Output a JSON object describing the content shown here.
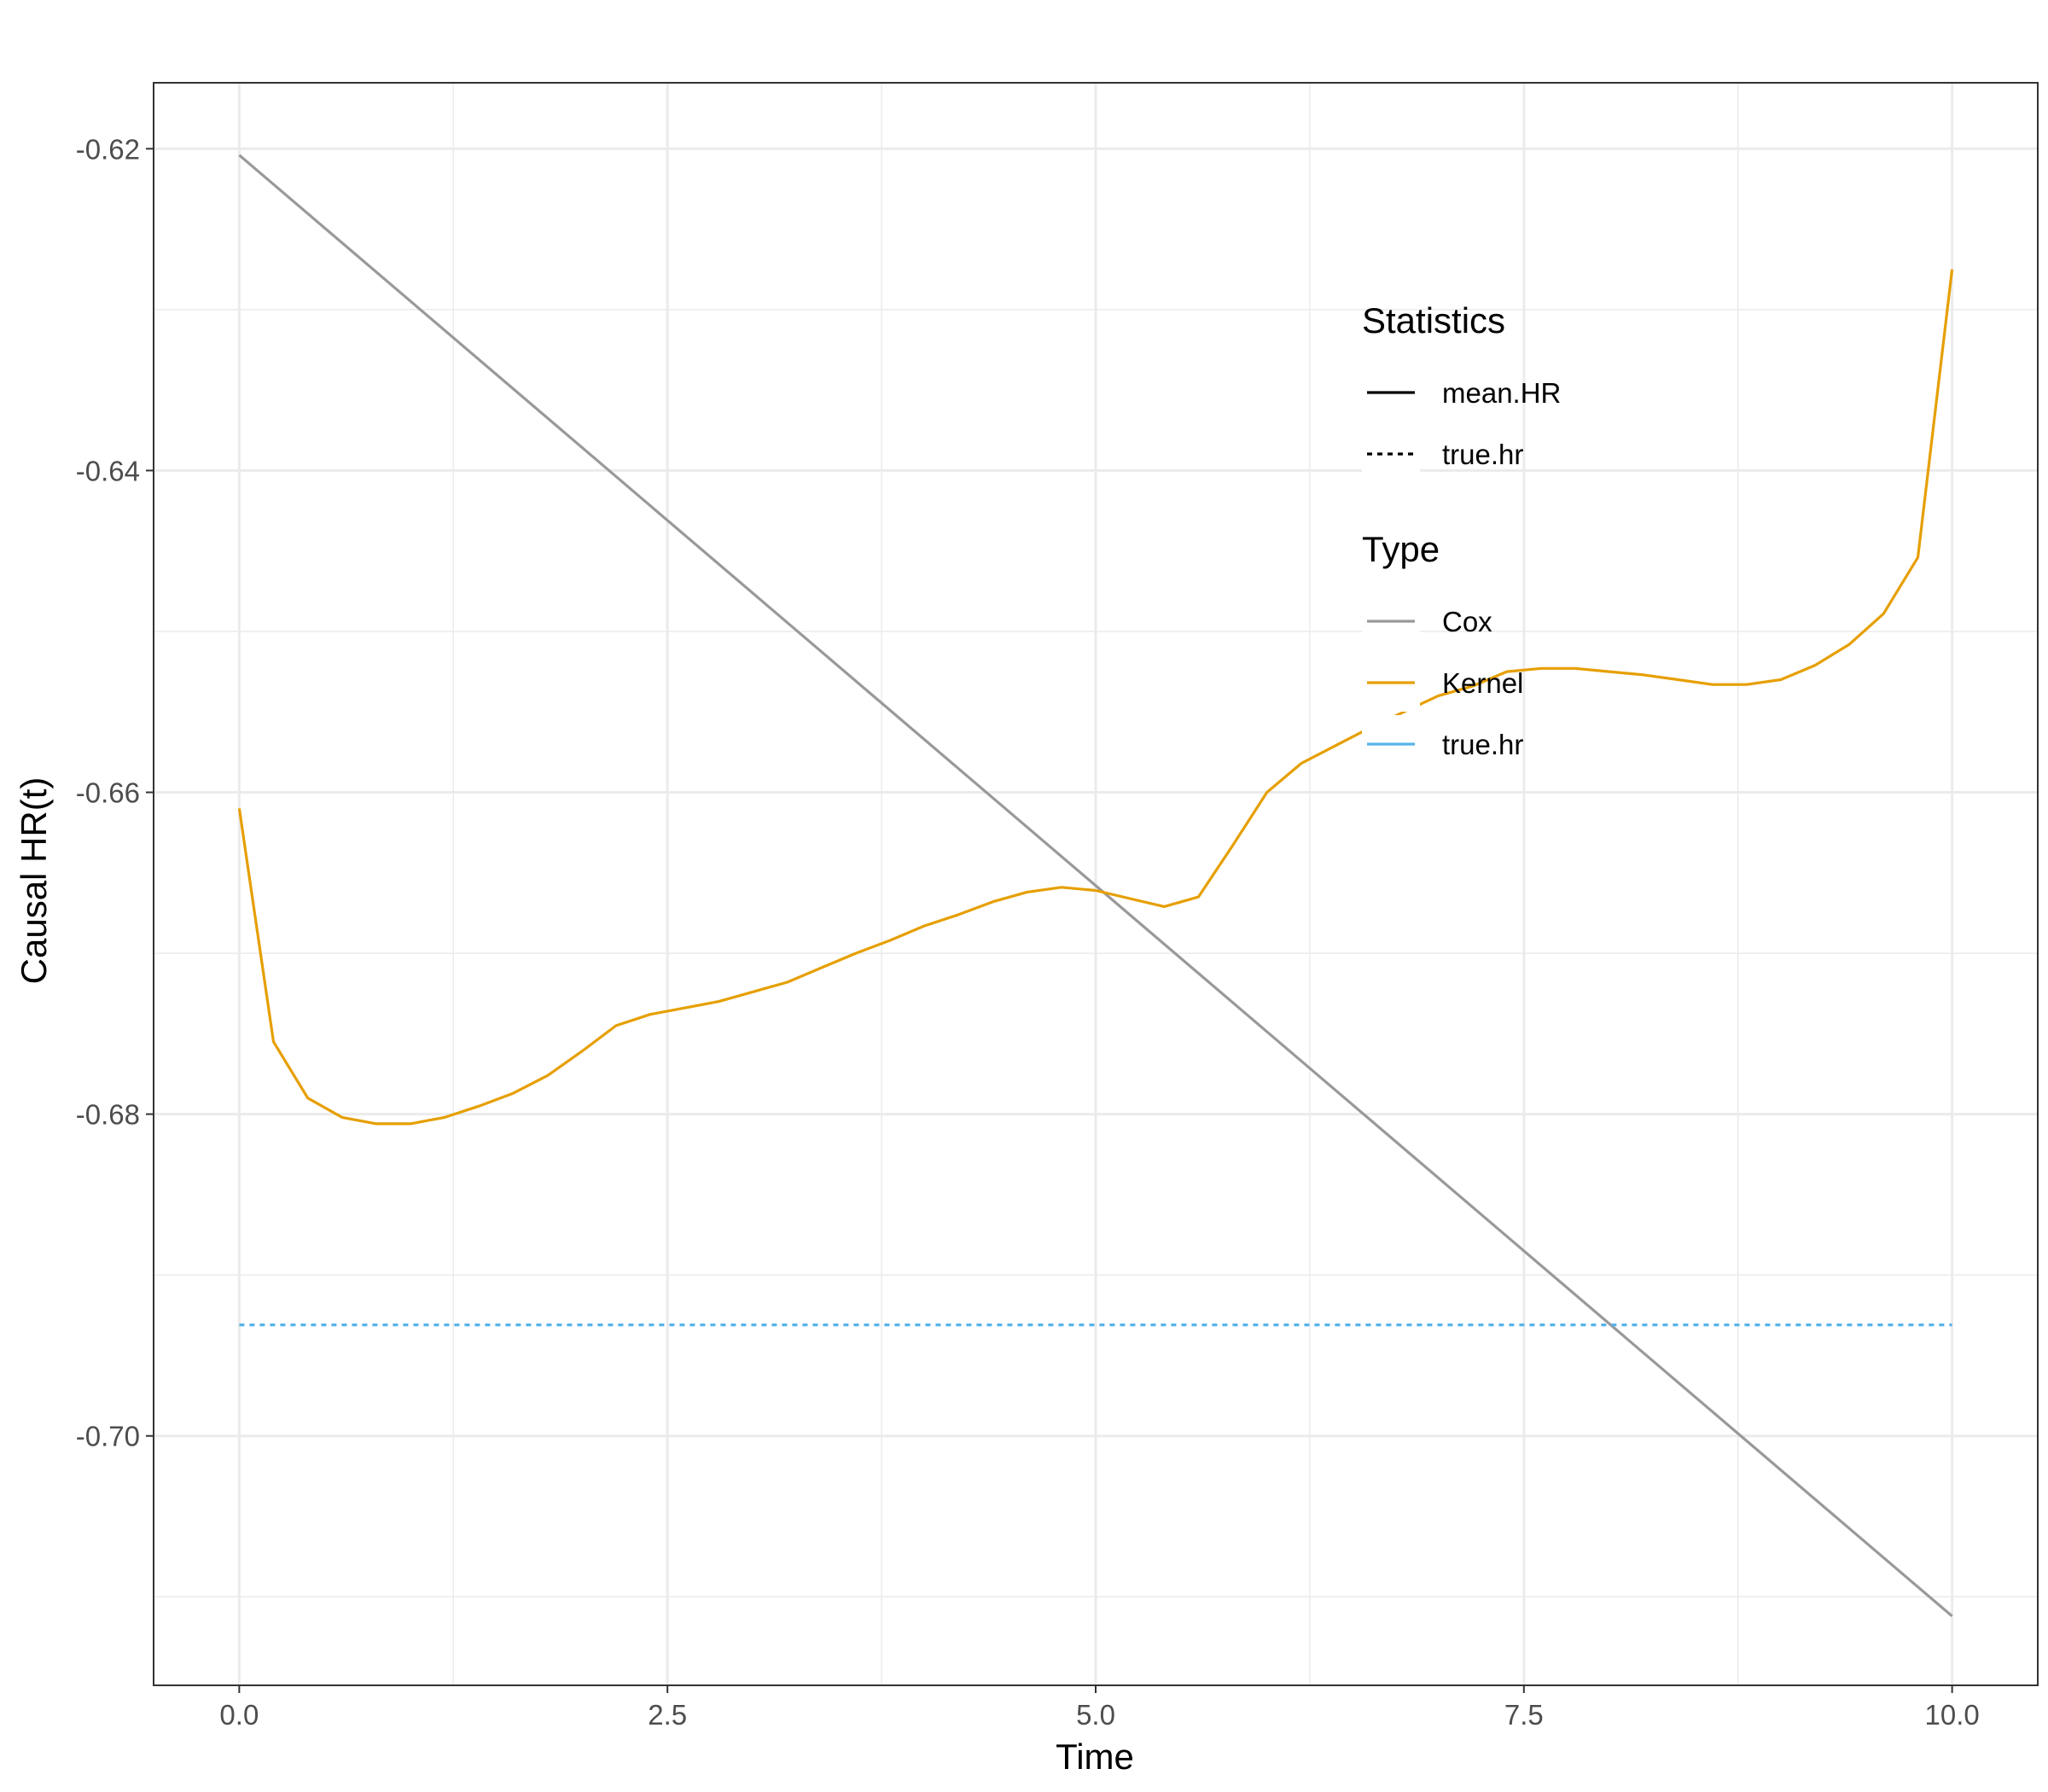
{
  "chart_data": {
    "type": "line",
    "xlabel": "Time",
    "ylabel": "Causal HR(t)",
    "xlim": [
      -0.5,
      10.5
    ],
    "ylim": [
      -0.7155,
      -0.6159
    ],
    "x_ticks": [
      0,
      2.5,
      5,
      7.5,
      10
    ],
    "x_tick_labels": [
      "0.0",
      "2.5",
      "5.0",
      "7.5",
      "10.0"
    ],
    "y_ticks": [
      -0.62,
      -0.64,
      -0.66,
      -0.68,
      -0.7
    ],
    "y_tick_labels": [
      "-0.62",
      "-0.64",
      "-0.66",
      "-0.68",
      "-0.70"
    ],
    "grid": true,
    "legend_position": "inside-right",
    "legends": [
      {
        "title": "Statistics",
        "items": [
          {
            "label": "mean.HR",
            "color": "#000000",
            "dash": "solid"
          },
          {
            "label": "true.hr",
            "color": "#000000",
            "dash": "dotted"
          }
        ]
      },
      {
        "title": "Type",
        "items": [
          {
            "label": "Cox",
            "color": "#999999",
            "dash": "solid"
          },
          {
            "label": "Kernel",
            "color": "#E69F00",
            "dash": "solid"
          },
          {
            "label": "true.hr",
            "color": "#56B4E9",
            "dash": "solid"
          }
        ]
      }
    ],
    "series": [
      {
        "type_name": "Cox",
        "statistic": "mean.HR",
        "color": "#999999",
        "dash": "solid",
        "x": [
          0,
          10
        ],
        "y": [
          -0.6204,
          -0.7112
        ]
      },
      {
        "type_name": "Kernel",
        "statistic": "mean.HR",
        "color": "#E69F00",
        "dash": "solid",
        "x": [
          0,
          0.2,
          0.4,
          0.6,
          0.8,
          1.0,
          1.2,
          1.4,
          1.6,
          1.8,
          2.0,
          2.2,
          2.4,
          2.6,
          2.8,
          3.0,
          3.2,
          3.4,
          3.6,
          3.8,
          4.0,
          4.2,
          4.4,
          4.6,
          4.8,
          5.0,
          5.2,
          5.4,
          5.6,
          5.8,
          6.0,
          6.2,
          6.4,
          6.6,
          6.8,
          7.0,
          7.2,
          7.4,
          7.6,
          7.8,
          8.0,
          8.2,
          8.4,
          8.6,
          8.8,
          9.0,
          9.2,
          9.4,
          9.6,
          9.8,
          10.0
        ],
        "y": [
          -0.661,
          -0.6755,
          -0.679,
          -0.6802,
          -0.6806,
          -0.6806,
          -0.6802,
          -0.6795,
          -0.6787,
          -0.6776,
          -0.6761,
          -0.6745,
          -0.6738,
          -0.6734,
          -0.673,
          -0.6724,
          -0.6718,
          -0.6709,
          -0.67,
          -0.6692,
          -0.6683,
          -0.6676,
          -0.6668,
          -0.6662,
          -0.6659,
          -0.6661,
          -0.6666,
          -0.6671,
          -0.6665,
          -0.6633,
          -0.66,
          -0.6582,
          -0.6571,
          -0.656,
          -0.655,
          -0.654,
          -0.6534,
          -0.6525,
          -0.6523,
          -0.6523,
          -0.6525,
          -0.6527,
          -0.653,
          -0.6533,
          -0.6533,
          -0.653,
          -0.6521,
          -0.6508,
          -0.6489,
          -0.6454,
          -0.6275
        ]
      },
      {
        "type_name": "true.hr",
        "statistic": "true.hr",
        "color": "#56B4E9",
        "dash": "dotted",
        "x": [
          0,
          10
        ],
        "y": [
          -0.6931,
          -0.6931
        ]
      }
    ]
  }
}
